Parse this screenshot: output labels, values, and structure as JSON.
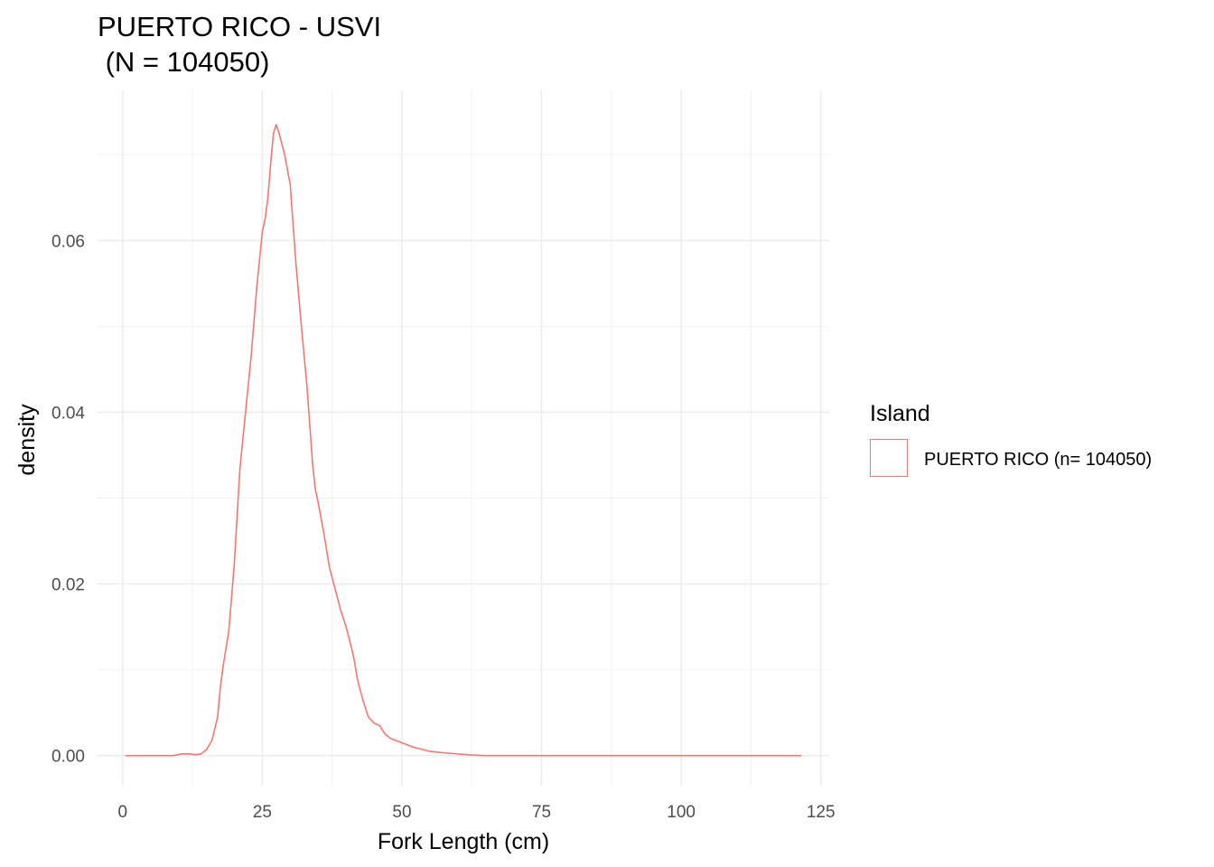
{
  "chart_data": {
    "type": "area",
    "title": "PUERTO RICO - USVI",
    "subtitle": " (N = 104050)",
    "xlabel": "Fork Length (cm)",
    "ylabel": "density",
    "xlim": [
      -4.5,
      126.5
    ],
    "ylim": [
      -0.0035,
      0.0775
    ],
    "x_ticks": [
      0,
      25,
      50,
      75,
      100,
      125
    ],
    "x_tick_labels": [
      "0",
      "25",
      "50",
      "75",
      "100",
      "125"
    ],
    "y_ticks": [
      0.0,
      0.02,
      0.04,
      0.06
    ],
    "y_tick_labels": [
      "0.00",
      "0.02",
      "0.04",
      "0.06"
    ],
    "grid": true,
    "legend": {
      "title": "Island",
      "position": "right",
      "entries": [
        "PUERTO RICO (n= 104050)"
      ]
    },
    "series": [
      {
        "name": "PUERTO RICO (n= 104050)",
        "color": "#F8766D",
        "x": [
          0.5,
          5,
          9,
          10.5,
          12,
          13,
          14,
          15,
          16,
          17,
          17.5,
          18,
          19,
          20,
          21,
          22,
          23,
          24,
          25,
          25.5,
          26,
          26.5,
          27,
          27.5,
          28,
          29,
          30,
          31,
          32,
          33,
          34,
          34.5,
          35,
          36,
          37,
          38,
          39,
          40,
          41,
          41.5,
          42,
          43,
          44,
          45,
          46,
          47,
          48,
          50,
          52,
          55,
          58,
          62,
          65,
          70,
          80,
          90,
          100,
          110,
          121.5
        ],
        "y": [
          0.0,
          0.0,
          0.0,
          0.0002,
          0.0002,
          0.0001,
          0.0002,
          0.0007,
          0.0018,
          0.0045,
          0.008,
          0.0105,
          0.0145,
          0.0225,
          0.0335,
          0.04,
          0.0465,
          0.0545,
          0.061,
          0.0625,
          0.065,
          0.069,
          0.0725,
          0.0735,
          0.0725,
          0.07,
          0.0665,
          0.0575,
          0.05,
          0.043,
          0.034,
          0.031,
          0.0295,
          0.026,
          0.022,
          0.0195,
          0.017,
          0.015,
          0.0125,
          0.011,
          0.009,
          0.0065,
          0.0045,
          0.0038,
          0.0035,
          0.0025,
          0.002,
          0.0015,
          0.001,
          0.0005,
          0.0003,
          0.0001,
          0.0,
          0.0,
          0.0,
          0.0,
          0.0,
          0.0,
          0.0
        ]
      }
    ]
  }
}
